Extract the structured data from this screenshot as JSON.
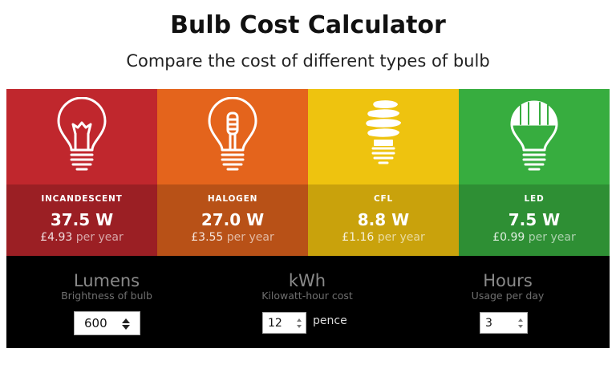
{
  "header": {
    "title": "Bulb Cost Calculator",
    "subtitle": "Compare the cost of different types of bulb"
  },
  "bulbs": [
    {
      "name": "INCANDESCENT",
      "watts": "37.5 W",
      "cost": "£4.93",
      "per": "per year",
      "icon": "incandescent-bulb-icon",
      "color": "#c0272d"
    },
    {
      "name": "HALOGEN",
      "watts": "27.0 W",
      "cost": "£3.55",
      "per": "per year",
      "icon": "halogen-bulb-icon",
      "color": "#e4641c"
    },
    {
      "name": "CFL",
      "watts": "8.8 W",
      "cost": "£1.16",
      "per": "per year",
      "icon": "cfl-bulb-icon",
      "color": "#eec30f"
    },
    {
      "name": "LED",
      "watts": "7.5 W",
      "cost": "£0.99",
      "per": "per year",
      "icon": "led-bulb-icon",
      "color": "#37ad3f"
    }
  ],
  "controls": {
    "lumens": {
      "label": "Lumens",
      "sub": "Brightness of bulb",
      "value": "600"
    },
    "kwh": {
      "label": "kWh",
      "sub": "Kilowatt-hour cost",
      "value": "12",
      "unit": "pence"
    },
    "hours": {
      "label": "Hours",
      "sub": "Usage per day",
      "value": "3"
    }
  }
}
